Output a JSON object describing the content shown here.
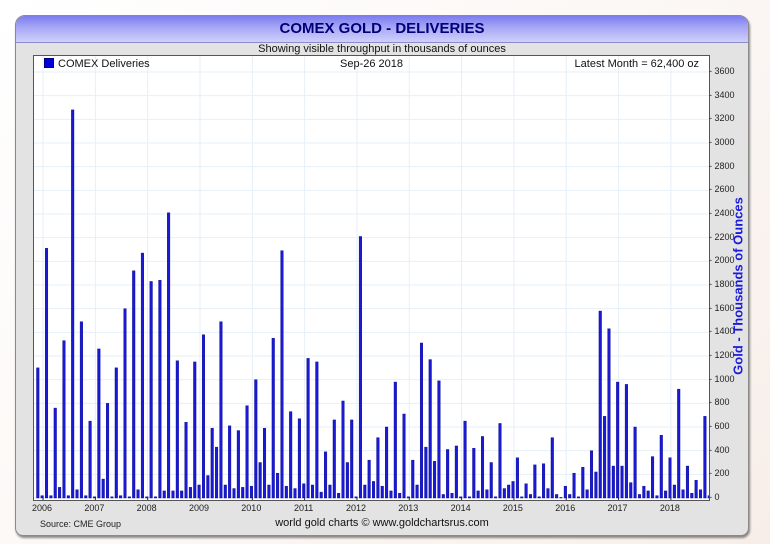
{
  "header": {
    "title": "COMEX GOLD - DELIVERIES",
    "subtitle": "Showing visible throughput in thousands of ounces"
  },
  "plot": {
    "legend_label": "COMEX Deliveries",
    "date_label": "Sep-26  2018",
    "latest_label": "Latest Month = 62,400 oz"
  },
  "footer": {
    "source": "Source: CME Group",
    "credit": "world gold charts © www.goldchartsrus.com"
  },
  "colors": {
    "bar": "#1a1ad6",
    "bar_edge": "#00008b",
    "title_text": "#00007a",
    "axis_title": "#1a1adb",
    "grid": "#e6eff8"
  },
  "chart_data": {
    "type": "bar",
    "title": "COMEX GOLD - DELIVERIES",
    "subtitle": "Showing visible throughput in thousands of ounces",
    "xlabel": "",
    "ylabel": "Gold - Thousands of Ounces",
    "ylim": [
      0,
      3600
    ],
    "yticks": [
      0,
      200,
      400,
      600,
      800,
      1000,
      1200,
      1400,
      1600,
      1800,
      2000,
      2200,
      2400,
      2600,
      2800,
      3000,
      3200,
      3400,
      3600
    ],
    "xtick_labels": [
      "2006",
      "2007",
      "2008",
      "2009",
      "2010",
      "2011",
      "2012",
      "2013",
      "2014",
      "2015",
      "2016",
      "2017",
      "2018"
    ],
    "grid": true,
    "legend": {
      "entries": [
        "COMEX Deliveries"
      ],
      "position": "top-left"
    },
    "annotations": [
      "Sep-26  2018",
      "Latest Month = 62,400 oz"
    ],
    "y_axis_side": "right",
    "x_start": "2006-01",
    "frequency": "monthly",
    "values": [
      1100,
      20,
      2110,
      20,
      760,
      90,
      1330,
      20,
      3280,
      70,
      1490,
      20,
      650,
      10,
      1260,
      160,
      800,
      10,
      1100,
      20,
      1600,
      10,
      1920,
      70,
      2070,
      10,
      1830,
      10,
      1840,
      60,
      2410,
      60,
      1160,
      60,
      640,
      90,
      1150,
      110,
      1380,
      190,
      590,
      430,
      1490,
      110,
      610,
      80,
      570,
      90,
      780,
      100,
      1000,
      300,
      590,
      110,
      1350,
      210,
      2090,
      100,
      730,
      80,
      670,
      120,
      1180,
      110,
      1150,
      50,
      390,
      110,
      660,
      40,
      820,
      300,
      660,
      10,
      2210,
      110,
      320,
      140,
      510,
      100,
      600,
      60,
      980,
      40,
      710,
      10,
      320,
      110,
      1310,
      430,
      1170,
      310,
      990,
      30,
      410,
      40,
      440,
      10,
      650,
      10,
      420,
      60,
      520,
      70,
      300,
      10,
      630,
      80,
      110,
      140,
      340,
      10,
      120,
      30,
      280,
      10,
      290,
      80,
      510,
      30,
      5,
      100,
      30,
      210,
      10,
      260,
      70,
      400,
      220,
      1580,
      690,
      1430,
      270,
      980,
      270,
      960,
      130,
      600,
      30,
      100,
      60,
      350,
      20,
      530,
      60,
      340,
      110,
      920,
      70,
      270,
      40,
      150,
      70,
      690,
      20,
      240,
      62
    ]
  }
}
